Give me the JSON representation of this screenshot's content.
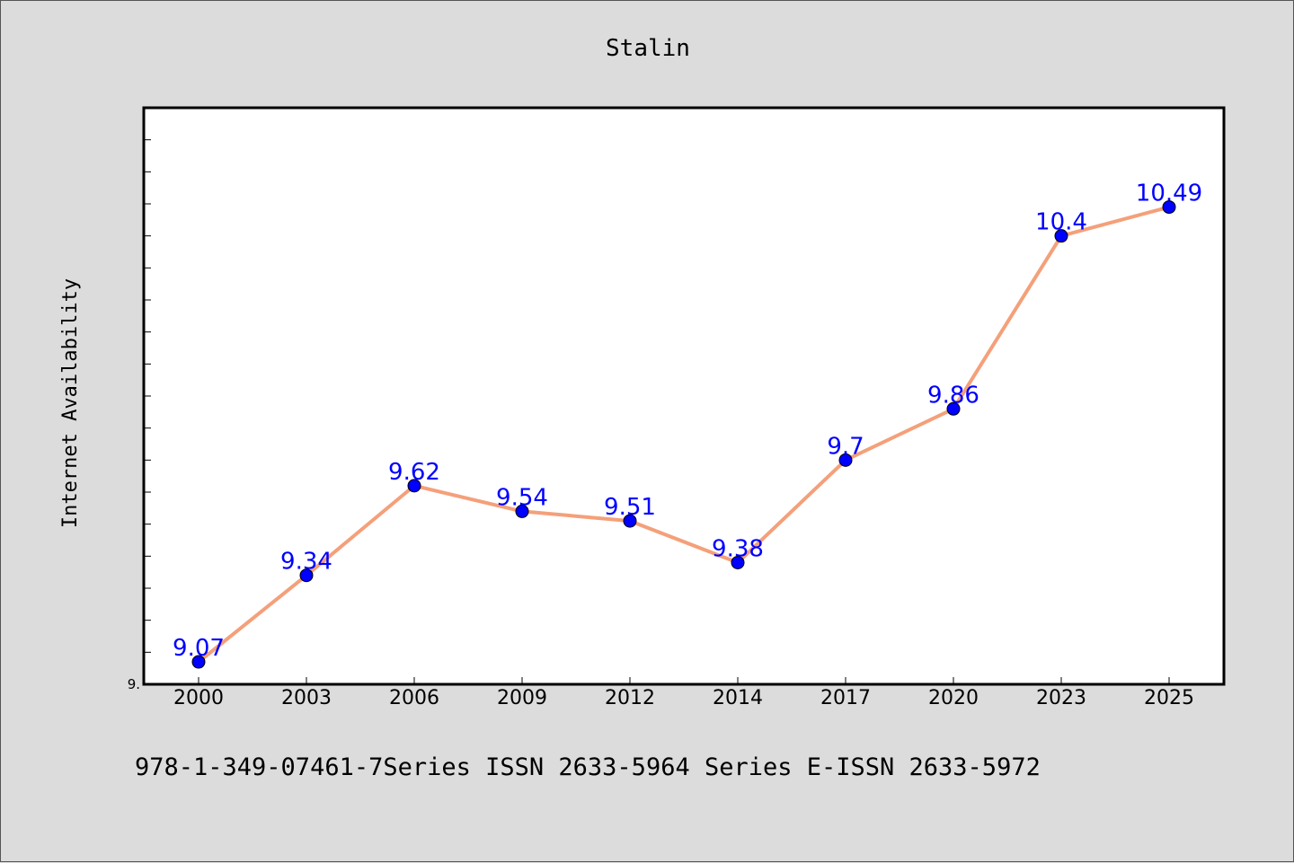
{
  "chart_data": {
    "type": "line",
    "title": "Stalin",
    "xlabel": "",
    "ylabel": "Internet Availability",
    "categories": [
      "2000",
      "2003",
      "2006",
      "2009",
      "2012",
      "2014",
      "2017",
      "2020",
      "2023",
      "2025"
    ],
    "series": [
      {
        "values": [
          9.07,
          9.34,
          9.62,
          9.54,
          9.51,
          9.38,
          9.7,
          9.86,
          10.4,
          10.49
        ],
        "labels": [
          "9.07",
          "9.34",
          "9.62",
          "9.54",
          "9.51",
          "9.38",
          "9.7",
          "9.86",
          "10.4",
          "10.49"
        ]
      }
    ],
    "ylim": [
      9.0,
      10.8
    ],
    "y_tick_label": "9.",
    "grid": false,
    "line_color": "#f4a07a",
    "marker_color": "#0000ff",
    "label_color": "#0000ff",
    "plot_background": "#ffffff",
    "figure_background": "#dcdcdc"
  },
  "footer": {
    "text": "978-1-349-07461-7Series ISSN 2633-5964 Series E-ISSN 2633-5972"
  }
}
